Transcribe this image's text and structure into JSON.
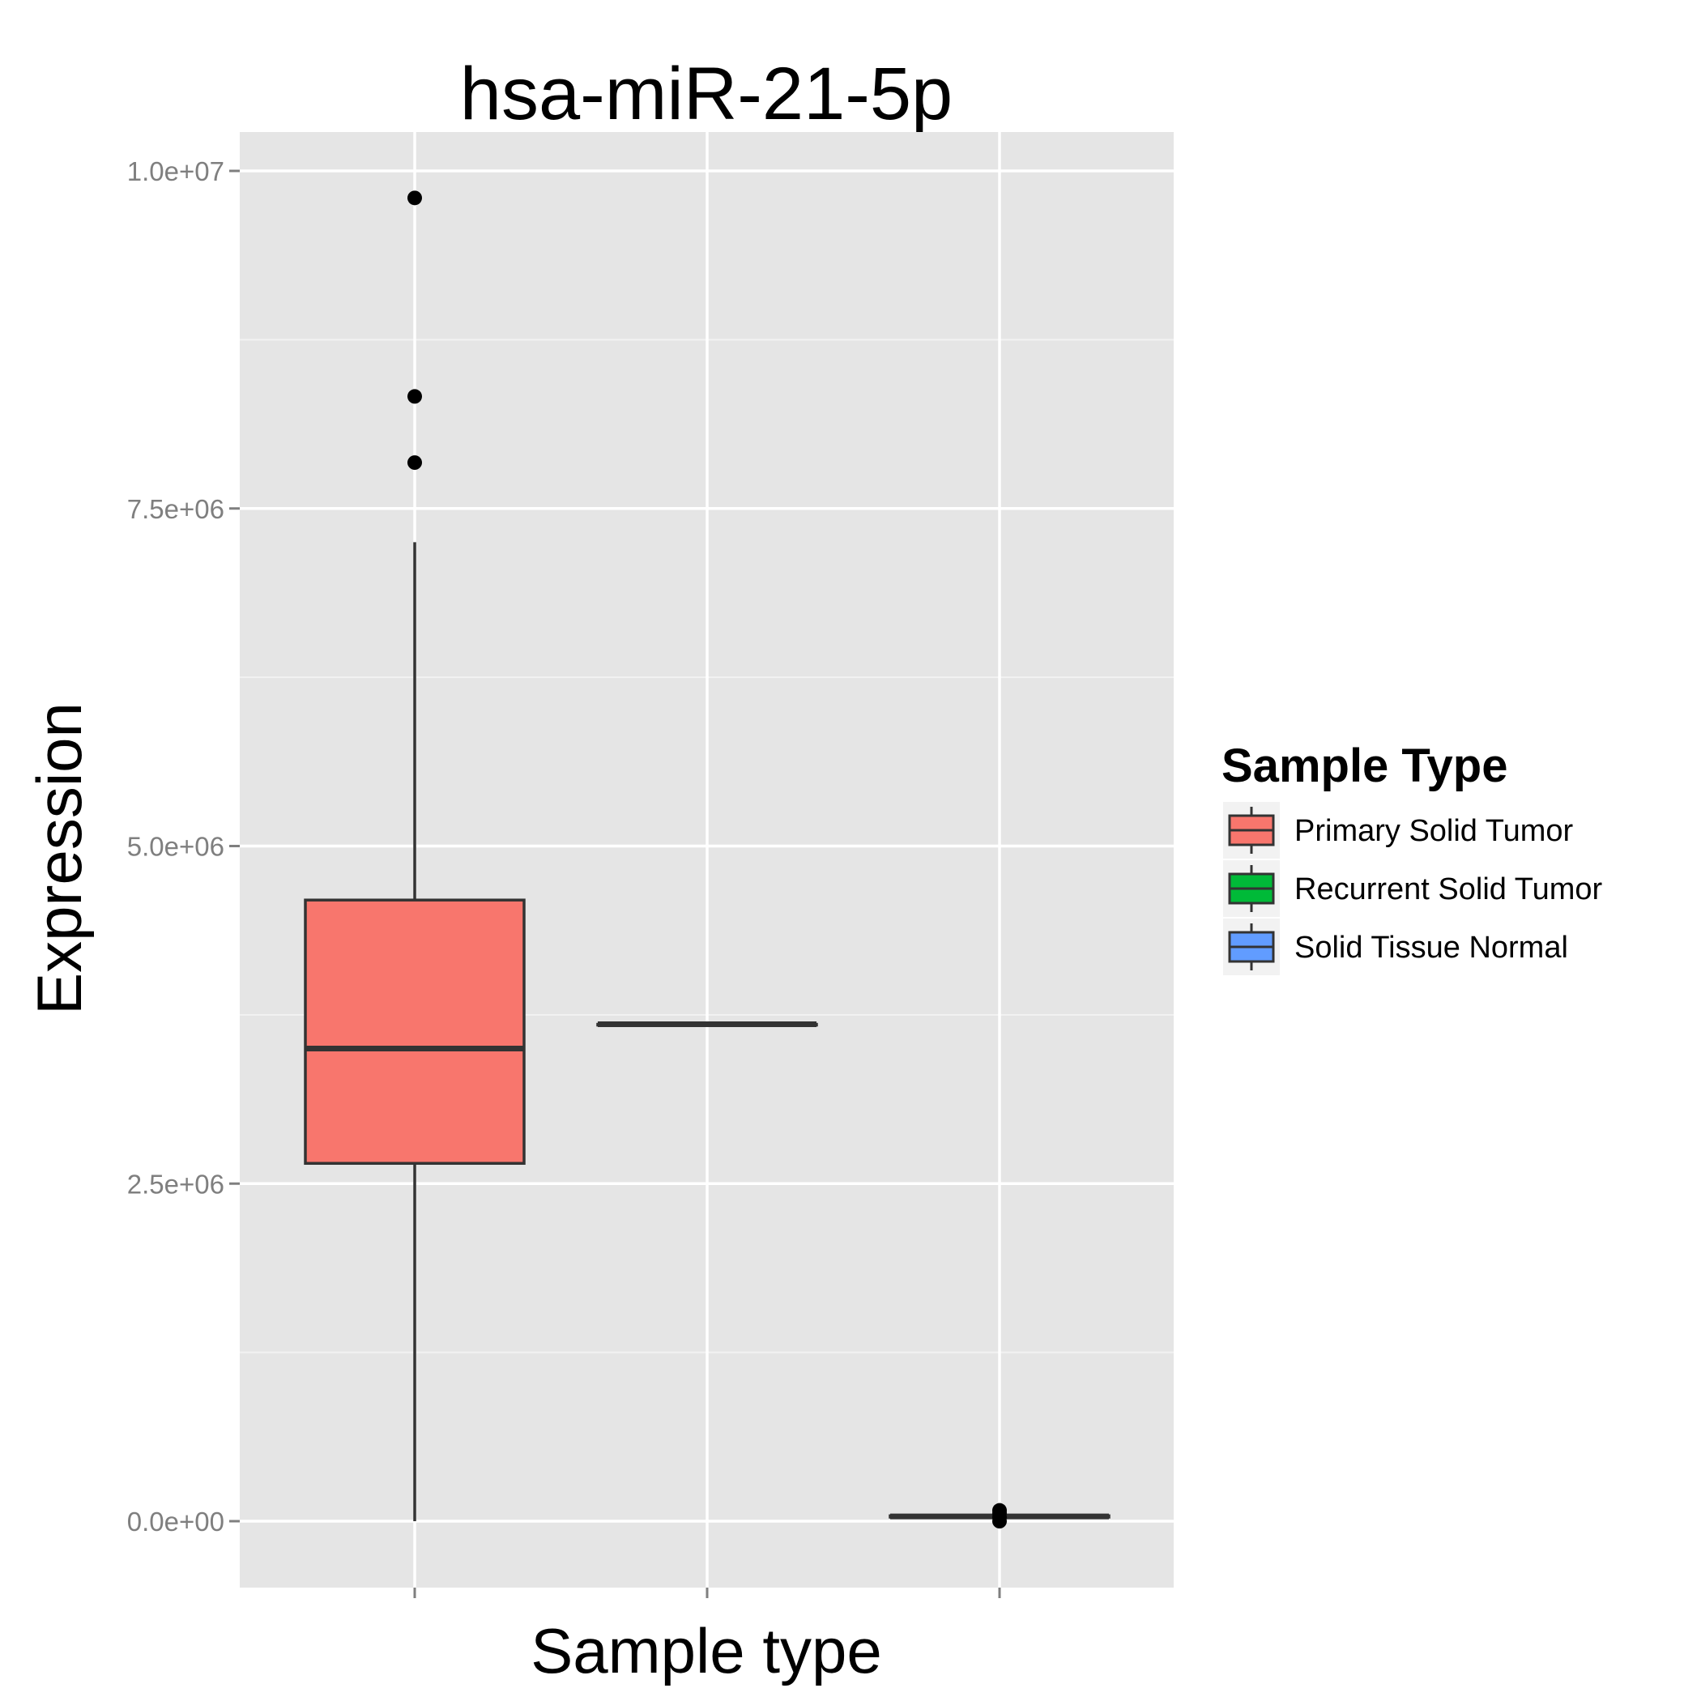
{
  "chart_data": {
    "type": "boxplot",
    "title": "hsa-miR-21-5p",
    "xlabel": "Sample type",
    "ylabel": "Expression",
    "ylim": [
      -500000,
      10280000
    ],
    "yticks": [
      0,
      2500000,
      5000000,
      7500000,
      10000000
    ],
    "ytick_labels": [
      "0.0e+00",
      "2.5e+06",
      "5.0e+06",
      "7.5e+06",
      "1.0e+07"
    ],
    "x_tick_labels_shown": false,
    "grid": true,
    "legend_position": "right",
    "legend_title": "Sample Type",
    "series": [
      {
        "name": "Primary Solid Tumor",
        "color": "#F8766D",
        "whisker_low": 0,
        "q1": 2650000,
        "median": 3500000,
        "q3": 4600000,
        "whisker_high": 7250000,
        "outliers": [
          9800000,
          8330000,
          7840000
        ]
      },
      {
        "name": "Recurrent Solid Tumor",
        "color": "#00BA38",
        "whisker_low": 3680000,
        "q1": 3680000,
        "median": 3680000,
        "q3": 3680000,
        "whisker_high": 3680000,
        "outliers": []
      },
      {
        "name": "Solid Tissue Normal",
        "color": "#619CFF",
        "whisker_low": 30000,
        "q1": 30000,
        "median": 35000,
        "q3": 40000,
        "whisker_high": 40000,
        "outliers": [
          0,
          30000,
          60000,
          80000
        ]
      }
    ]
  }
}
